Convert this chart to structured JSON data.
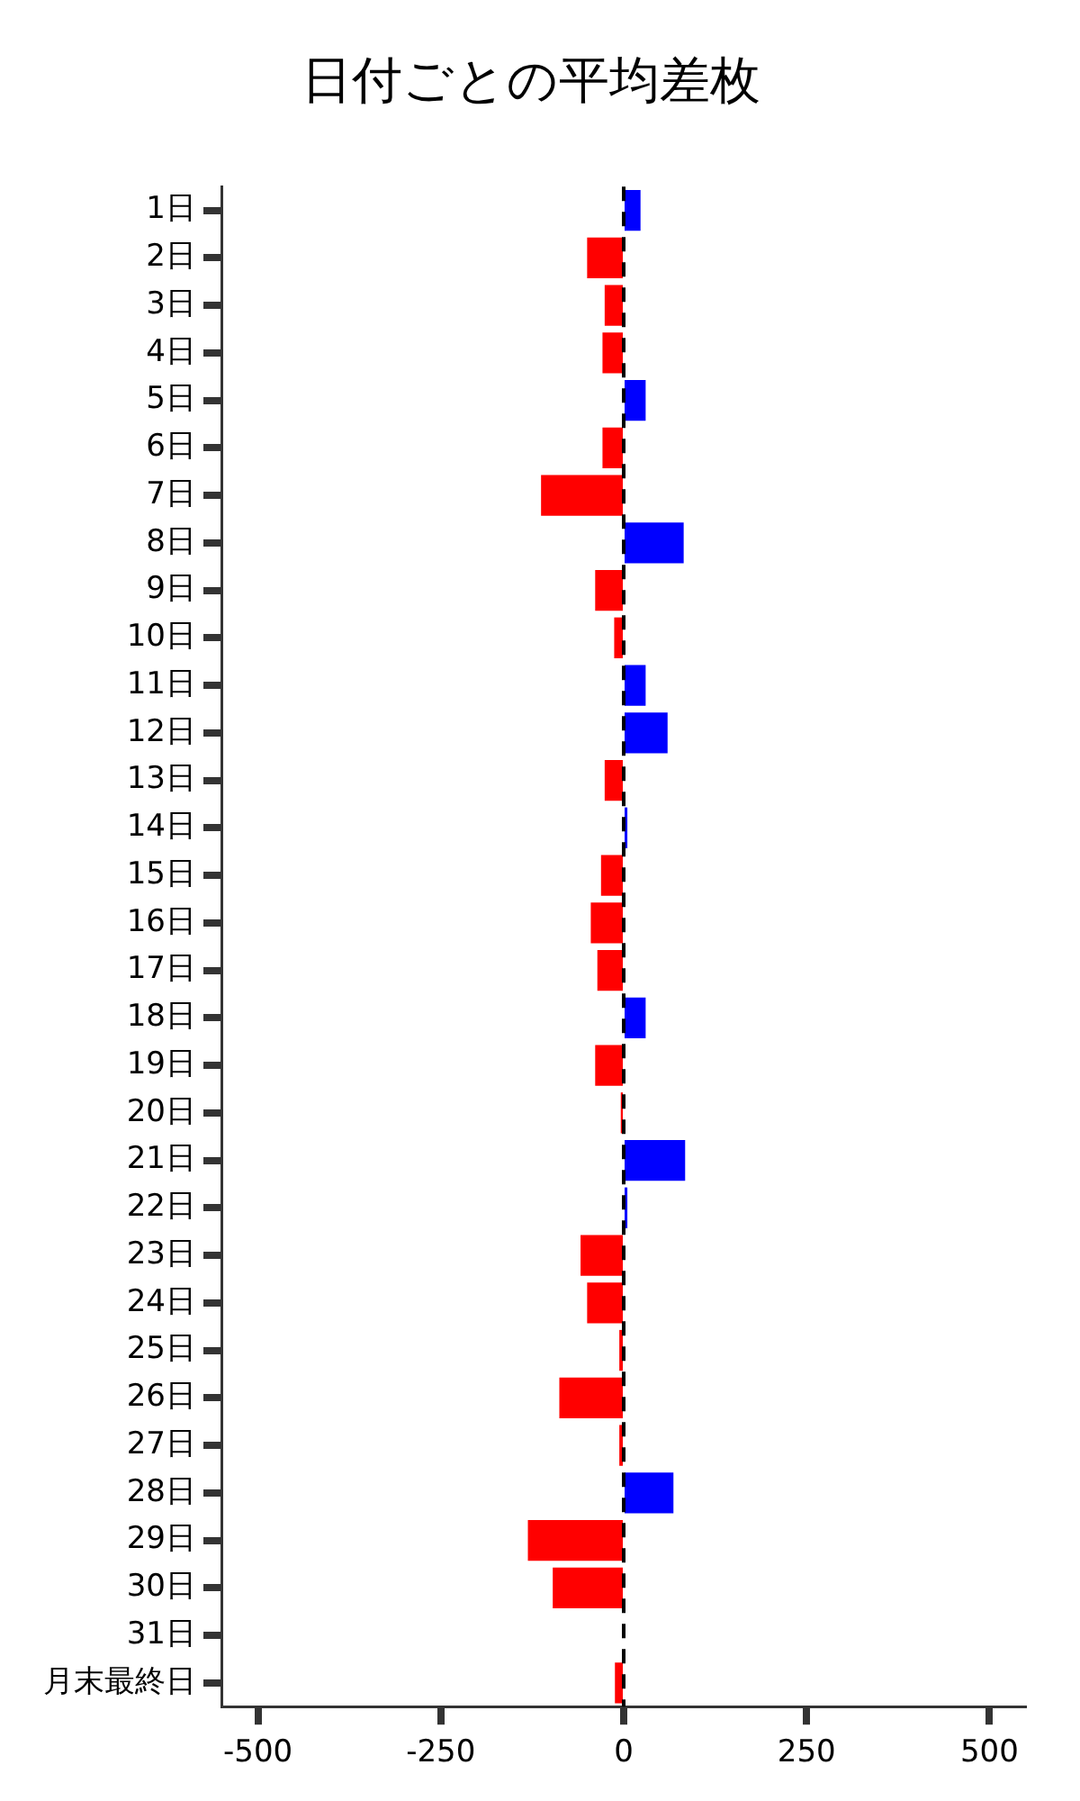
{
  "chart_data": {
    "type": "bar",
    "orientation": "horizontal",
    "title": "日付ごとの平均差枚",
    "categories": [
      "1日",
      "2日",
      "3日",
      "4日",
      "5日",
      "6日",
      "7日",
      "8日",
      "9日",
      "10日",
      "11日",
      "12日",
      "13日",
      "14日",
      "15日",
      "16日",
      "17日",
      "18日",
      "19日",
      "20日",
      "21日",
      "22日",
      "23日",
      "24日",
      "25日",
      "26日",
      "27日",
      "28日",
      "29日",
      "30日",
      "31日",
      "月末最終日"
    ],
    "values": [
      23,
      -50,
      -26,
      -29,
      30,
      -29,
      -113,
      82,
      -39,
      -13,
      30,
      60,
      -26,
      5,
      -31,
      -45,
      -36,
      30,
      -39,
      -4,
      84,
      5,
      -59,
      -50,
      -6,
      -88,
      -6,
      68,
      -131,
      -97,
      0,
      -12
    ],
    "colors": [
      "#0000ff",
      "#ff0000",
      "#ff0000",
      "#ff0000",
      "#0000ff",
      "#ff0000",
      "#ff0000",
      "#0000ff",
      "#ff0000",
      "#ff0000",
      "#0000ff",
      "#0000ff",
      "#ff0000",
      "#0000ff",
      "#ff0000",
      "#ff0000",
      "#ff0000",
      "#0000ff",
      "#ff0000",
      "#ff0000",
      "#0000ff",
      "#0000ff",
      "#ff0000",
      "#ff0000",
      "#ff0000",
      "#ff0000",
      "#ff0000",
      "#0000ff",
      "#ff0000",
      "#ff0000",
      "#0000ff",
      "#ff0000"
    ],
    "xlim": [
      -550,
      550
    ],
    "xticks": [
      -500,
      -250,
      0,
      250,
      500
    ],
    "ref_lines": [
      {
        "axis": "x",
        "value": 0,
        "color": "#000000",
        "line_style": "dashed"
      }
    ],
    "grid": false,
    "legend": false
  }
}
